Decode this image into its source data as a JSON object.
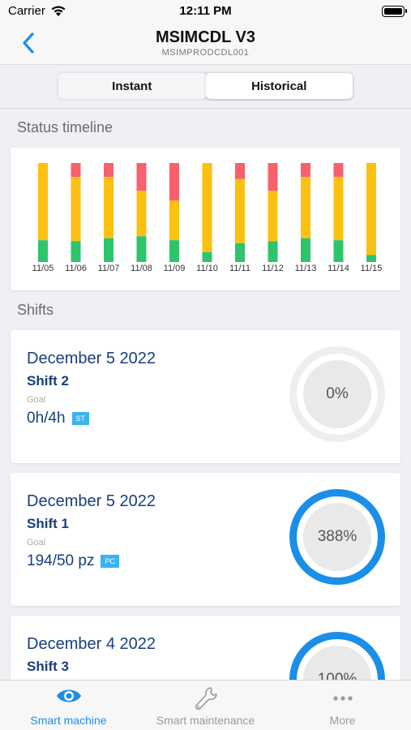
{
  "status_bar": {
    "carrier": "Carrier",
    "time": "12:11 PM"
  },
  "nav": {
    "title": "MSIMCDL V3",
    "subtitle": "MSIMPRODCDL001",
    "back_icon": "chevron-left-icon"
  },
  "tabs_top": {
    "instant": "Instant",
    "historical": "Historical",
    "selected": "Instant"
  },
  "timeline": {
    "title": "Status timeline",
    "colors": {
      "red": "#f8606e",
      "yellow": "#fcc010",
      "green": "#2ec46c"
    },
    "chart_data": {
      "type": "bar",
      "stacked": true,
      "categories": [
        "11/05",
        "11/06",
        "11/07",
        "11/08",
        "11/09",
        "11/10",
        "11/11",
        "11/12",
        "11/13",
        "11/14",
        "11/15"
      ],
      "series": [
        {
          "color": "red",
          "values": [
            0,
            0.14,
            0.14,
            0.28,
            0.38,
            0,
            0.16,
            0.28,
            0.14,
            0.14,
            0
          ]
        },
        {
          "color": "yellow",
          "values": [
            0.78,
            0.65,
            0.62,
            0.46,
            0.4,
            0.9,
            0.65,
            0.51,
            0.62,
            0.64,
            0.93
          ]
        },
        {
          "color": "green",
          "values": [
            0.22,
            0.21,
            0.24,
            0.26,
            0.22,
            0.1,
            0.19,
            0.21,
            0.24,
            0.22,
            0.07
          ]
        }
      ],
      "ylim": [
        0,
        1
      ],
      "grid": false
    }
  },
  "shifts": {
    "title": "Shifts",
    "goal_label": "Goal",
    "items": [
      {
        "date": "December 5 2022",
        "name": "Shift 2",
        "goal": "0h/4h",
        "badge": "ST",
        "percent_label": "0%",
        "progress": 0
      },
      {
        "date": "December 5 2022",
        "name": "Shift 1",
        "goal": "194/50 pz",
        "badge": "PC",
        "percent_label": "388%",
        "progress": 1
      },
      {
        "date": "December 4 2022",
        "name": "Shift 3",
        "goal": "",
        "badge": "",
        "percent_label": "100%",
        "progress": 1
      }
    ]
  },
  "tab_bar": {
    "items": [
      {
        "label": "Smart machine",
        "icon": "eye-icon",
        "active": true
      },
      {
        "label": "Smart maintenance",
        "icon": "wrench-icon",
        "active": false
      },
      {
        "label": "More",
        "icon": "more-dots-icon",
        "active": false
      }
    ],
    "active_color": "#1b8ee8",
    "inactive_color": "#9a9a9a"
  }
}
